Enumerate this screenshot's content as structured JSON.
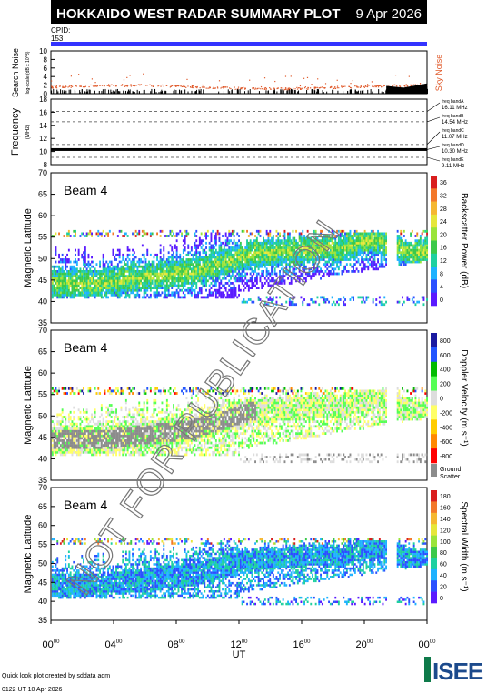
{
  "header": {
    "title": "HOKKAIDO WEST RADAR SUMMARY PLOT",
    "date": "9 Apr 2026"
  },
  "cpid": {
    "label": "CPID:",
    "value": "153"
  },
  "noise": {
    "ylabel": "Search Noise",
    "ysublabel": "log-scale (dB x 10^3)",
    "ticks": [
      0,
      2,
      4,
      6,
      8,
      10
    ],
    "sky_label": "Sky Noise"
  },
  "frequency": {
    "ylabel": "Frequency",
    "unit": "(MHz)",
    "ticks": [
      8,
      10,
      12,
      14,
      16,
      18
    ],
    "bands": [
      {
        "name": "freq bandA",
        "mhz": "16.11 MHz",
        "value": 16.11
      },
      {
        "name": "freq bandB",
        "mhz": "14.54 MHz",
        "value": 14.54
      },
      {
        "name": "freq bandC",
        "mhz": "11.07 MHz",
        "value": 11.07
      },
      {
        "name": "freq bandD",
        "mhz": "10.30 MHz",
        "value": 10.3
      },
      {
        "name": "freq bandE",
        "mhz": "9.11 MHz",
        "value": 9.11
      }
    ]
  },
  "panels": [
    {
      "beam": "Beam  4",
      "ylabel": "Magnetic Latitude",
      "cbar_label": "Backscatter Power (dB)",
      "cbar_ticks": [
        "0",
        "4",
        "8",
        "12",
        "16",
        "20",
        "24",
        "28",
        "32",
        "36"
      ]
    },
    {
      "beam": "Beam  4",
      "ylabel": "Magnetic Latitude",
      "cbar_label": "Doppler Velocity (m s⁻¹)",
      "cbar_ticks": [
        "-800",
        "-600",
        "-400",
        "-200",
        "0",
        "200",
        "400",
        "600",
        "800"
      ],
      "ground_scatter": "Ground\nScatter"
    },
    {
      "beam": "Beam  4",
      "ylabel": "Magnetic Latitude",
      "cbar_label": "Spectral Width (m s⁻¹)",
      "cbar_ticks": [
        "0",
        "20",
        "40",
        "60",
        "80",
        "100",
        "120",
        "140",
        "160",
        "180"
      ]
    }
  ],
  "lat_ticks": [
    35,
    40,
    45,
    50,
    55,
    60,
    65,
    70
  ],
  "time_ticks": [
    "00",
    "04",
    "08",
    "12",
    "16",
    "20",
    "00"
  ],
  "time_sup": "00",
  "xlabel": "UT",
  "watermark": "NOT FOR PUBLICATION",
  "footer": {
    "line1": "Quick look plot created by sddata adm",
    "line2": "0122 UT 10 Apr 2026",
    "logo": "ISEE"
  },
  "colors": {
    "header_bg": "#000000",
    "cpid_bar": "#3333ff",
    "noise_dots": "#e05a2b",
    "ground": "#8c8c8c",
    "power_scale": [
      "#5a1aff",
      "#2b50ff",
      "#1fb2ff",
      "#1fd0a0",
      "#3cc94a",
      "#9ae43a",
      "#e6e63a",
      "#f5b731",
      "#f3782a",
      "#d91e1e"
    ],
    "velocity_scale": [
      "#ff0000",
      "#ff8800",
      "#ffcc00",
      "#ffff66",
      "#dddddd",
      "#55ff55",
      "#00bb00",
      "#2255ff",
      "#1a1aa0"
    ],
    "width_scale": [
      "#5a1aff",
      "#2b50ff",
      "#1fb2ff",
      "#1fd0a0",
      "#3cc94a",
      "#9ae43a",
      "#e6e63a",
      "#f5b731",
      "#f3782a",
      "#d91e1e"
    ]
  },
  "chart_data": [
    {
      "type": "scatter",
      "name": "search-noise",
      "ylim": [
        0,
        10
      ],
      "xlim_hours": [
        0,
        24
      ]
    },
    {
      "type": "line",
      "name": "frequency",
      "ylim": [
        8,
        18
      ],
      "xlim_hours": [
        0,
        24
      ],
      "value": 10.3
    },
    {
      "type": "heatmap",
      "name": "backscatter-power",
      "ylim": [
        35,
        70
      ],
      "xlim_hours": [
        0,
        24
      ],
      "zlim": [
        0,
        36
      ]
    },
    {
      "type": "heatmap",
      "name": "doppler-velocity",
      "ylim": [
        35,
        70
      ],
      "xlim_hours": [
        0,
        24
      ],
      "zlim": [
        -800,
        800
      ]
    },
    {
      "type": "heatmap",
      "name": "spectral-width",
      "ylim": [
        35,
        70
      ],
      "xlim_hours": [
        0,
        24
      ],
      "zlim": [
        0,
        180
      ]
    }
  ]
}
